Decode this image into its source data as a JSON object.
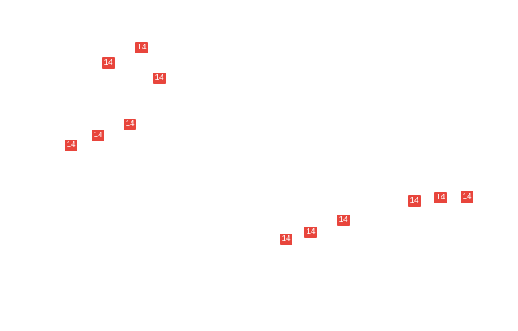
{
  "markers": [
    "14",
    "14",
    "14",
    "14",
    "14",
    "14",
    "14",
    "14",
    "14",
    "14",
    "14",
    "14"
  ]
}
